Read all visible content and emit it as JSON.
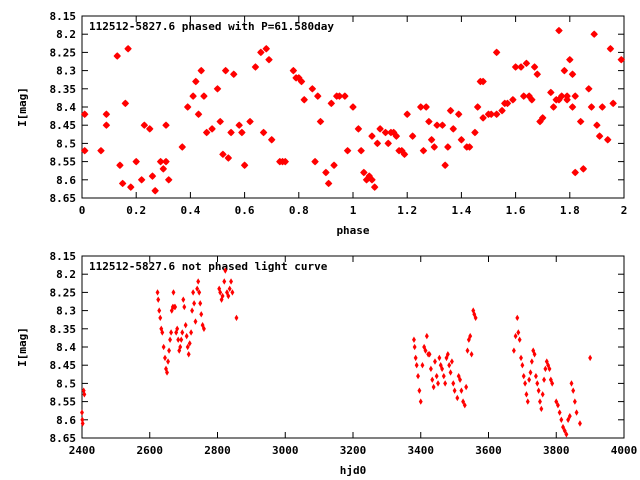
{
  "chart_data": [
    {
      "type": "scatter",
      "title": "112512-5827.6 phased with P=61.580day",
      "xlabel": "phase",
      "ylabel": "I[mag]",
      "xlim": [
        0,
        2
      ],
      "ylim": [
        8.65,
        8.15
      ],
      "y_inverted": true,
      "grid": false,
      "marker_color": "#ff0000",
      "xticks": [
        "0",
        "0.2",
        "0.4",
        "0.6",
        "0.8",
        "1",
        "1.2",
        "1.4",
        "1.6",
        "1.8",
        "2"
      ],
      "yticks": [
        "8.15",
        "8.2",
        "8.25",
        "8.3",
        "8.35",
        "8.4",
        "8.45",
        "8.5",
        "8.55",
        "8.6",
        "8.65"
      ],
      "points": [
        [
          0.01,
          8.42
        ],
        [
          0.01,
          8.52
        ],
        [
          0.07,
          8.52
        ],
        [
          0.09,
          8.45
        ],
        [
          0.09,
          8.42
        ],
        [
          0.13,
          8.26
        ],
        [
          0.14,
          8.56
        ],
        [
          0.15,
          8.61
        ],
        [
          0.16,
          8.39
        ],
        [
          0.17,
          8.24
        ],
        [
          0.18,
          8.62
        ],
        [
          0.2,
          8.55
        ],
        [
          0.22,
          8.6
        ],
        [
          0.23,
          8.45
        ],
        [
          0.25,
          8.46
        ],
        [
          0.26,
          8.59
        ],
        [
          0.27,
          8.63
        ],
        [
          0.29,
          8.55
        ],
        [
          0.3,
          8.57
        ],
        [
          0.31,
          8.45
        ],
        [
          0.31,
          8.55
        ],
        [
          0.32,
          8.6
        ],
        [
          0.37,
          8.51
        ],
        [
          0.39,
          8.4
        ],
        [
          0.41,
          8.37
        ],
        [
          0.42,
          8.33
        ],
        [
          0.43,
          8.42
        ],
        [
          0.44,
          8.3
        ],
        [
          0.45,
          8.37
        ],
        [
          0.46,
          8.47
        ],
        [
          0.48,
          8.46
        ],
        [
          0.5,
          8.35
        ],
        [
          0.51,
          8.44
        ],
        [
          0.52,
          8.53
        ],
        [
          0.53,
          8.3
        ],
        [
          0.54,
          8.54
        ],
        [
          0.55,
          8.47
        ],
        [
          0.56,
          8.31
        ],
        [
          0.58,
          8.45
        ],
        [
          0.59,
          8.47
        ],
        [
          0.6,
          8.56
        ],
        [
          0.62,
          8.44
        ],
        [
          0.64,
          8.29
        ],
        [
          0.66,
          8.25
        ],
        [
          0.67,
          8.47
        ],
        [
          0.68,
          8.24
        ],
        [
          0.69,
          8.27
        ],
        [
          0.7,
          8.49
        ],
        [
          0.73,
          8.55
        ],
        [
          0.74,
          8.55
        ],
        [
          0.75,
          8.55
        ],
        [
          0.78,
          8.3
        ],
        [
          0.79,
          8.32
        ],
        [
          0.8,
          8.32
        ],
        [
          0.81,
          8.33
        ],
        [
          0.82,
          8.38
        ],
        [
          0.85,
          8.35
        ],
        [
          0.86,
          8.55
        ],
        [
          0.87,
          8.37
        ],
        [
          0.88,
          8.44
        ],
        [
          0.9,
          8.58
        ],
        [
          0.91,
          8.61
        ],
        [
          0.92,
          8.39
        ],
        [
          0.93,
          8.56
        ],
        [
          0.94,
          8.37
        ],
        [
          0.95,
          8.37
        ],
        [
          0.97,
          8.37
        ],
        [
          0.98,
          8.52
        ],
        [
          1.0,
          8.4
        ],
        [
          1.02,
          8.46
        ],
        [
          1.03,
          8.52
        ],
        [
          1.04,
          8.58
        ],
        [
          1.05,
          8.6
        ],
        [
          1.06,
          8.59
        ],
        [
          1.07,
          8.6
        ],
        [
          1.07,
          8.48
        ],
        [
          1.08,
          8.62
        ],
        [
          1.09,
          8.5
        ],
        [
          1.1,
          8.46
        ],
        [
          1.12,
          8.47
        ],
        [
          1.13,
          8.5
        ],
        [
          1.14,
          8.47
        ],
        [
          1.15,
          8.47
        ],
        [
          1.16,
          8.48
        ],
        [
          1.17,
          8.52
        ],
        [
          1.18,
          8.52
        ],
        [
          1.19,
          8.53
        ],
        [
          1.2,
          8.42
        ],
        [
          1.22,
          8.48
        ],
        [
          1.25,
          8.4
        ],
        [
          1.26,
          8.52
        ],
        [
          1.27,
          8.4
        ],
        [
          1.28,
          8.44
        ],
        [
          1.29,
          8.49
        ],
        [
          1.3,
          8.51
        ],
        [
          1.31,
          8.45
        ],
        [
          1.33,
          8.45
        ],
        [
          1.34,
          8.56
        ],
        [
          1.35,
          8.51
        ],
        [
          1.36,
          8.41
        ],
        [
          1.37,
          8.46
        ],
        [
          1.39,
          8.42
        ],
        [
          1.4,
          8.49
        ],
        [
          1.42,
          8.51
        ],
        [
          1.43,
          8.51
        ],
        [
          1.45,
          8.47
        ],
        [
          1.46,
          8.4
        ],
        [
          1.47,
          8.33
        ],
        [
          1.48,
          8.43
        ],
        [
          1.48,
          8.33
        ],
        [
          1.5,
          8.42
        ],
        [
          1.51,
          8.42
        ],
        [
          1.53,
          8.25
        ],
        [
          1.53,
          8.42
        ],
        [
          1.55,
          8.41
        ],
        [
          1.56,
          8.39
        ],
        [
          1.57,
          8.39
        ],
        [
          1.59,
          8.38
        ],
        [
          1.6,
          8.29
        ],
        [
          1.62,
          8.29
        ],
        [
          1.63,
          8.37
        ],
        [
          1.64,
          8.28
        ],
        [
          1.65,
          8.37
        ],
        [
          1.66,
          8.38
        ],
        [
          1.67,
          8.29
        ],
        [
          1.68,
          8.31
        ],
        [
          1.69,
          8.44
        ],
        [
          1.7,
          8.43
        ],
        [
          1.73,
          8.36
        ],
        [
          1.74,
          8.4
        ],
        [
          1.75,
          8.38
        ],
        [
          1.76,
          8.19
        ],
        [
          1.76,
          8.38
        ],
        [
          1.77,
          8.37
        ],
        [
          1.78,
          8.3
        ],
        [
          1.79,
          8.37
        ],
        [
          1.79,
          8.38
        ],
        [
          1.8,
          8.27
        ],
        [
          1.81,
          8.4
        ],
        [
          1.81,
          8.31
        ],
        [
          1.82,
          8.37
        ],
        [
          1.82,
          8.58
        ],
        [
          1.84,
          8.44
        ],
        [
          1.85,
          8.57
        ],
        [
          1.87,
          8.35
        ],
        [
          1.88,
          8.4
        ],
        [
          1.89,
          8.2
        ],
        [
          1.9,
          8.45
        ],
        [
          1.91,
          8.48
        ],
        [
          1.92,
          8.4
        ],
        [
          1.94,
          8.49
        ],
        [
          1.95,
          8.24
        ],
        [
          1.96,
          8.39
        ],
        [
          1.99,
          8.27
        ]
      ]
    },
    {
      "type": "scatter",
      "title": "112512-5827.6 not phased light curve",
      "xlabel": "hjd0",
      "ylabel": "I[mag]",
      "xlim": [
        2400,
        4000
      ],
      "ylim": [
        8.65,
        8.15
      ],
      "y_inverted": true,
      "grid": false,
      "marker_color": "#ff0000",
      "xticks": [
        "2400",
        "2600",
        "2800",
        "3000",
        "3200",
        "3400",
        "3600",
        "3800",
        "4000"
      ],
      "yticks": [
        "8.15",
        "8.2",
        "8.25",
        "8.3",
        "8.35",
        "8.4",
        "8.45",
        "8.5",
        "8.55",
        "8.6",
        "8.65"
      ],
      "points": [
        [
          2400,
          8.58
        ],
        [
          2401,
          8.6
        ],
        [
          2402,
          8.61
        ],
        [
          2405,
          8.52
        ],
        [
          2407,
          8.53
        ],
        [
          2623,
          8.25
        ],
        [
          2625,
          8.27
        ],
        [
          2628,
          8.3
        ],
        [
          2631,
          8.32
        ],
        [
          2634,
          8.35
        ],
        [
          2637,
          8.36
        ],
        [
          2641,
          8.4
        ],
        [
          2645,
          8.43
        ],
        [
          2648,
          8.46
        ],
        [
          2651,
          8.47
        ],
        [
          2654,
          8.44
        ],
        [
          2657,
          8.41
        ],
        [
          2660,
          8.38
        ],
        [
          2663,
          8.36
        ],
        [
          2665,
          8.3
        ],
        [
          2668,
          8.29
        ],
        [
          2670,
          8.25
        ],
        [
          2672,
          8.29
        ],
        [
          2675,
          8.29
        ],
        [
          2678,
          8.36
        ],
        [
          2681,
          8.35
        ],
        [
          2684,
          8.38
        ],
        [
          2687,
          8.41
        ],
        [
          2690,
          8.4
        ],
        [
          2693,
          8.38
        ],
        [
          2696,
          8.36
        ],
        [
          2699,
          8.27
        ],
        [
          2702,
          8.29
        ],
        [
          2706,
          8.34
        ],
        [
          2709,
          8.37
        ],
        [
          2712,
          8.4
        ],
        [
          2715,
          8.42
        ],
        [
          2718,
          8.39
        ],
        [
          2722,
          8.36
        ],
        [
          2725,
          8.3
        ],
        [
          2728,
          8.25
        ],
        [
          2731,
          8.28
        ],
        [
          2735,
          8.33
        ],
        [
          2740,
          8.24
        ],
        [
          2743,
          8.22
        ],
        [
          2746,
          8.25
        ],
        [
          2749,
          8.28
        ],
        [
          2752,
          8.31
        ],
        [
          2756,
          8.34
        ],
        [
          2760,
          8.35
        ],
        [
          2805,
          8.24
        ],
        [
          2808,
          8.25
        ],
        [
          2812,
          8.27
        ],
        [
          2815,
          8.26
        ],
        [
          2820,
          8.22
        ],
        [
          2823,
          8.19
        ],
        [
          2828,
          8.25
        ],
        [
          2832,
          8.26
        ],
        [
          2836,
          8.24
        ],
        [
          2840,
          8.22
        ],
        [
          2844,
          8.25
        ],
        [
          2856,
          8.32
        ],
        [
          3380,
          8.38
        ],
        [
          3382,
          8.4
        ],
        [
          3385,
          8.43
        ],
        [
          3388,
          8.45
        ],
        [
          3392,
          8.48
        ],
        [
          3396,
          8.52
        ],
        [
          3400,
          8.55
        ],
        [
          3405,
          8.45
        ],
        [
          3410,
          8.4
        ],
        [
          3414,
          8.41
        ],
        [
          3418,
          8.37
        ],
        [
          3422,
          8.42
        ],
        [
          3426,
          8.42
        ],
        [
          3430,
          8.46
        ],
        [
          3434,
          8.49
        ],
        [
          3438,
          8.51
        ],
        [
          3442,
          8.44
        ],
        [
          3447,
          8.48
        ],
        [
          3451,
          8.5
        ],
        [
          3455,
          8.43
        ],
        [
          3459,
          8.45
        ],
        [
          3463,
          8.46
        ],
        [
          3468,
          8.48
        ],
        [
          3472,
          8.5
        ],
        [
          3476,
          8.43
        ],
        [
          3480,
          8.42
        ],
        [
          3484,
          8.45
        ],
        [
          3488,
          8.47
        ],
        [
          3492,
          8.44
        ],
        [
          3496,
          8.5
        ],
        [
          3500,
          8.52
        ],
        [
          3508,
          8.54
        ],
        [
          3512,
          8.48
        ],
        [
          3516,
          8.49
        ],
        [
          3520,
          8.52
        ],
        [
          3525,
          8.55
        ],
        [
          3530,
          8.56
        ],
        [
          3534,
          8.51
        ],
        [
          3538,
          8.41
        ],
        [
          3542,
          8.38
        ],
        [
          3546,
          8.37
        ],
        [
          3550,
          8.42
        ],
        [
          3555,
          8.3
        ],
        [
          3558,
          8.31
        ],
        [
          3562,
          8.32
        ],
        [
          3675,
          8.41
        ],
        [
          3680,
          8.37
        ],
        [
          3685,
          8.32
        ],
        [
          3688,
          8.36
        ],
        [
          3692,
          8.38
        ],
        [
          3696,
          8.43
        ],
        [
          3700,
          8.45
        ],
        [
          3704,
          8.48
        ],
        [
          3708,
          8.5
        ],
        [
          3712,
          8.53
        ],
        [
          3716,
          8.55
        ],
        [
          3720,
          8.49
        ],
        [
          3724,
          8.47
        ],
        [
          3728,
          8.44
        ],
        [
          3732,
          8.41
        ],
        [
          3736,
          8.42
        ],
        [
          3740,
          8.48
        ],
        [
          3744,
          8.5
        ],
        [
          3748,
          8.52
        ],
        [
          3752,
          8.55
        ],
        [
          3756,
          8.57
        ],
        [
          3760,
          8.53
        ],
        [
          3764,
          8.49
        ],
        [
          3768,
          8.46
        ],
        [
          3772,
          8.44
        ],
        [
          3776,
          8.45
        ],
        [
          3780,
          8.46
        ],
        [
          3784,
          8.49
        ],
        [
          3788,
          8.5
        ],
        [
          3800,
          8.55
        ],
        [
          3805,
          8.56
        ],
        [
          3810,
          8.58
        ],
        [
          3815,
          8.6
        ],
        [
          3820,
          8.62
        ],
        [
          3825,
          8.63
        ],
        [
          3830,
          8.64
        ],
        [
          3835,
          8.6
        ],
        [
          3840,
          8.59
        ],
        [
          3845,
          8.5
        ],
        [
          3850,
          8.52
        ],
        [
          3855,
          8.55
        ],
        [
          3860,
          8.58
        ],
        [
          3870,
          8.61
        ],
        [
          3900,
          8.43
        ]
      ]
    }
  ]
}
